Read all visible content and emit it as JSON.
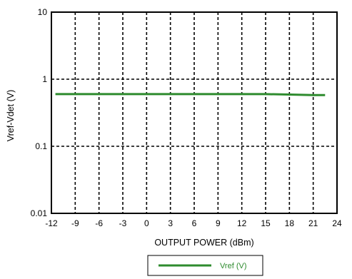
{
  "chart_data": {
    "type": "line",
    "xlabel": "OUTPUT POWER  (dBm)",
    "ylabel": "Vref-Vdet (V)",
    "xlim": [
      -12,
      24
    ],
    "ylim": [
      0.01,
      10
    ],
    "yscale": "log",
    "grid": true,
    "x_ticks": [
      "-12",
      "-9",
      "-6",
      "-3",
      "0",
      "3",
      "6",
      "9",
      "12",
      "15",
      "18",
      "21",
      "24"
    ],
    "y_ticks": [
      "10",
      "1",
      "0.1",
      "0.01"
    ],
    "legend_position": "bottom-center",
    "series": [
      {
        "name": "Vref (V)",
        "color": "#2e8b2e",
        "x": [
          -11.5,
          -9,
          -6,
          -3,
          0,
          3,
          6,
          9,
          12,
          15,
          18,
          21,
          22.5
        ],
        "y": [
          0.6,
          0.6,
          0.6,
          0.6,
          0.6,
          0.6,
          0.6,
          0.6,
          0.6,
          0.6,
          0.59,
          0.58,
          0.58
        ]
      }
    ]
  }
}
